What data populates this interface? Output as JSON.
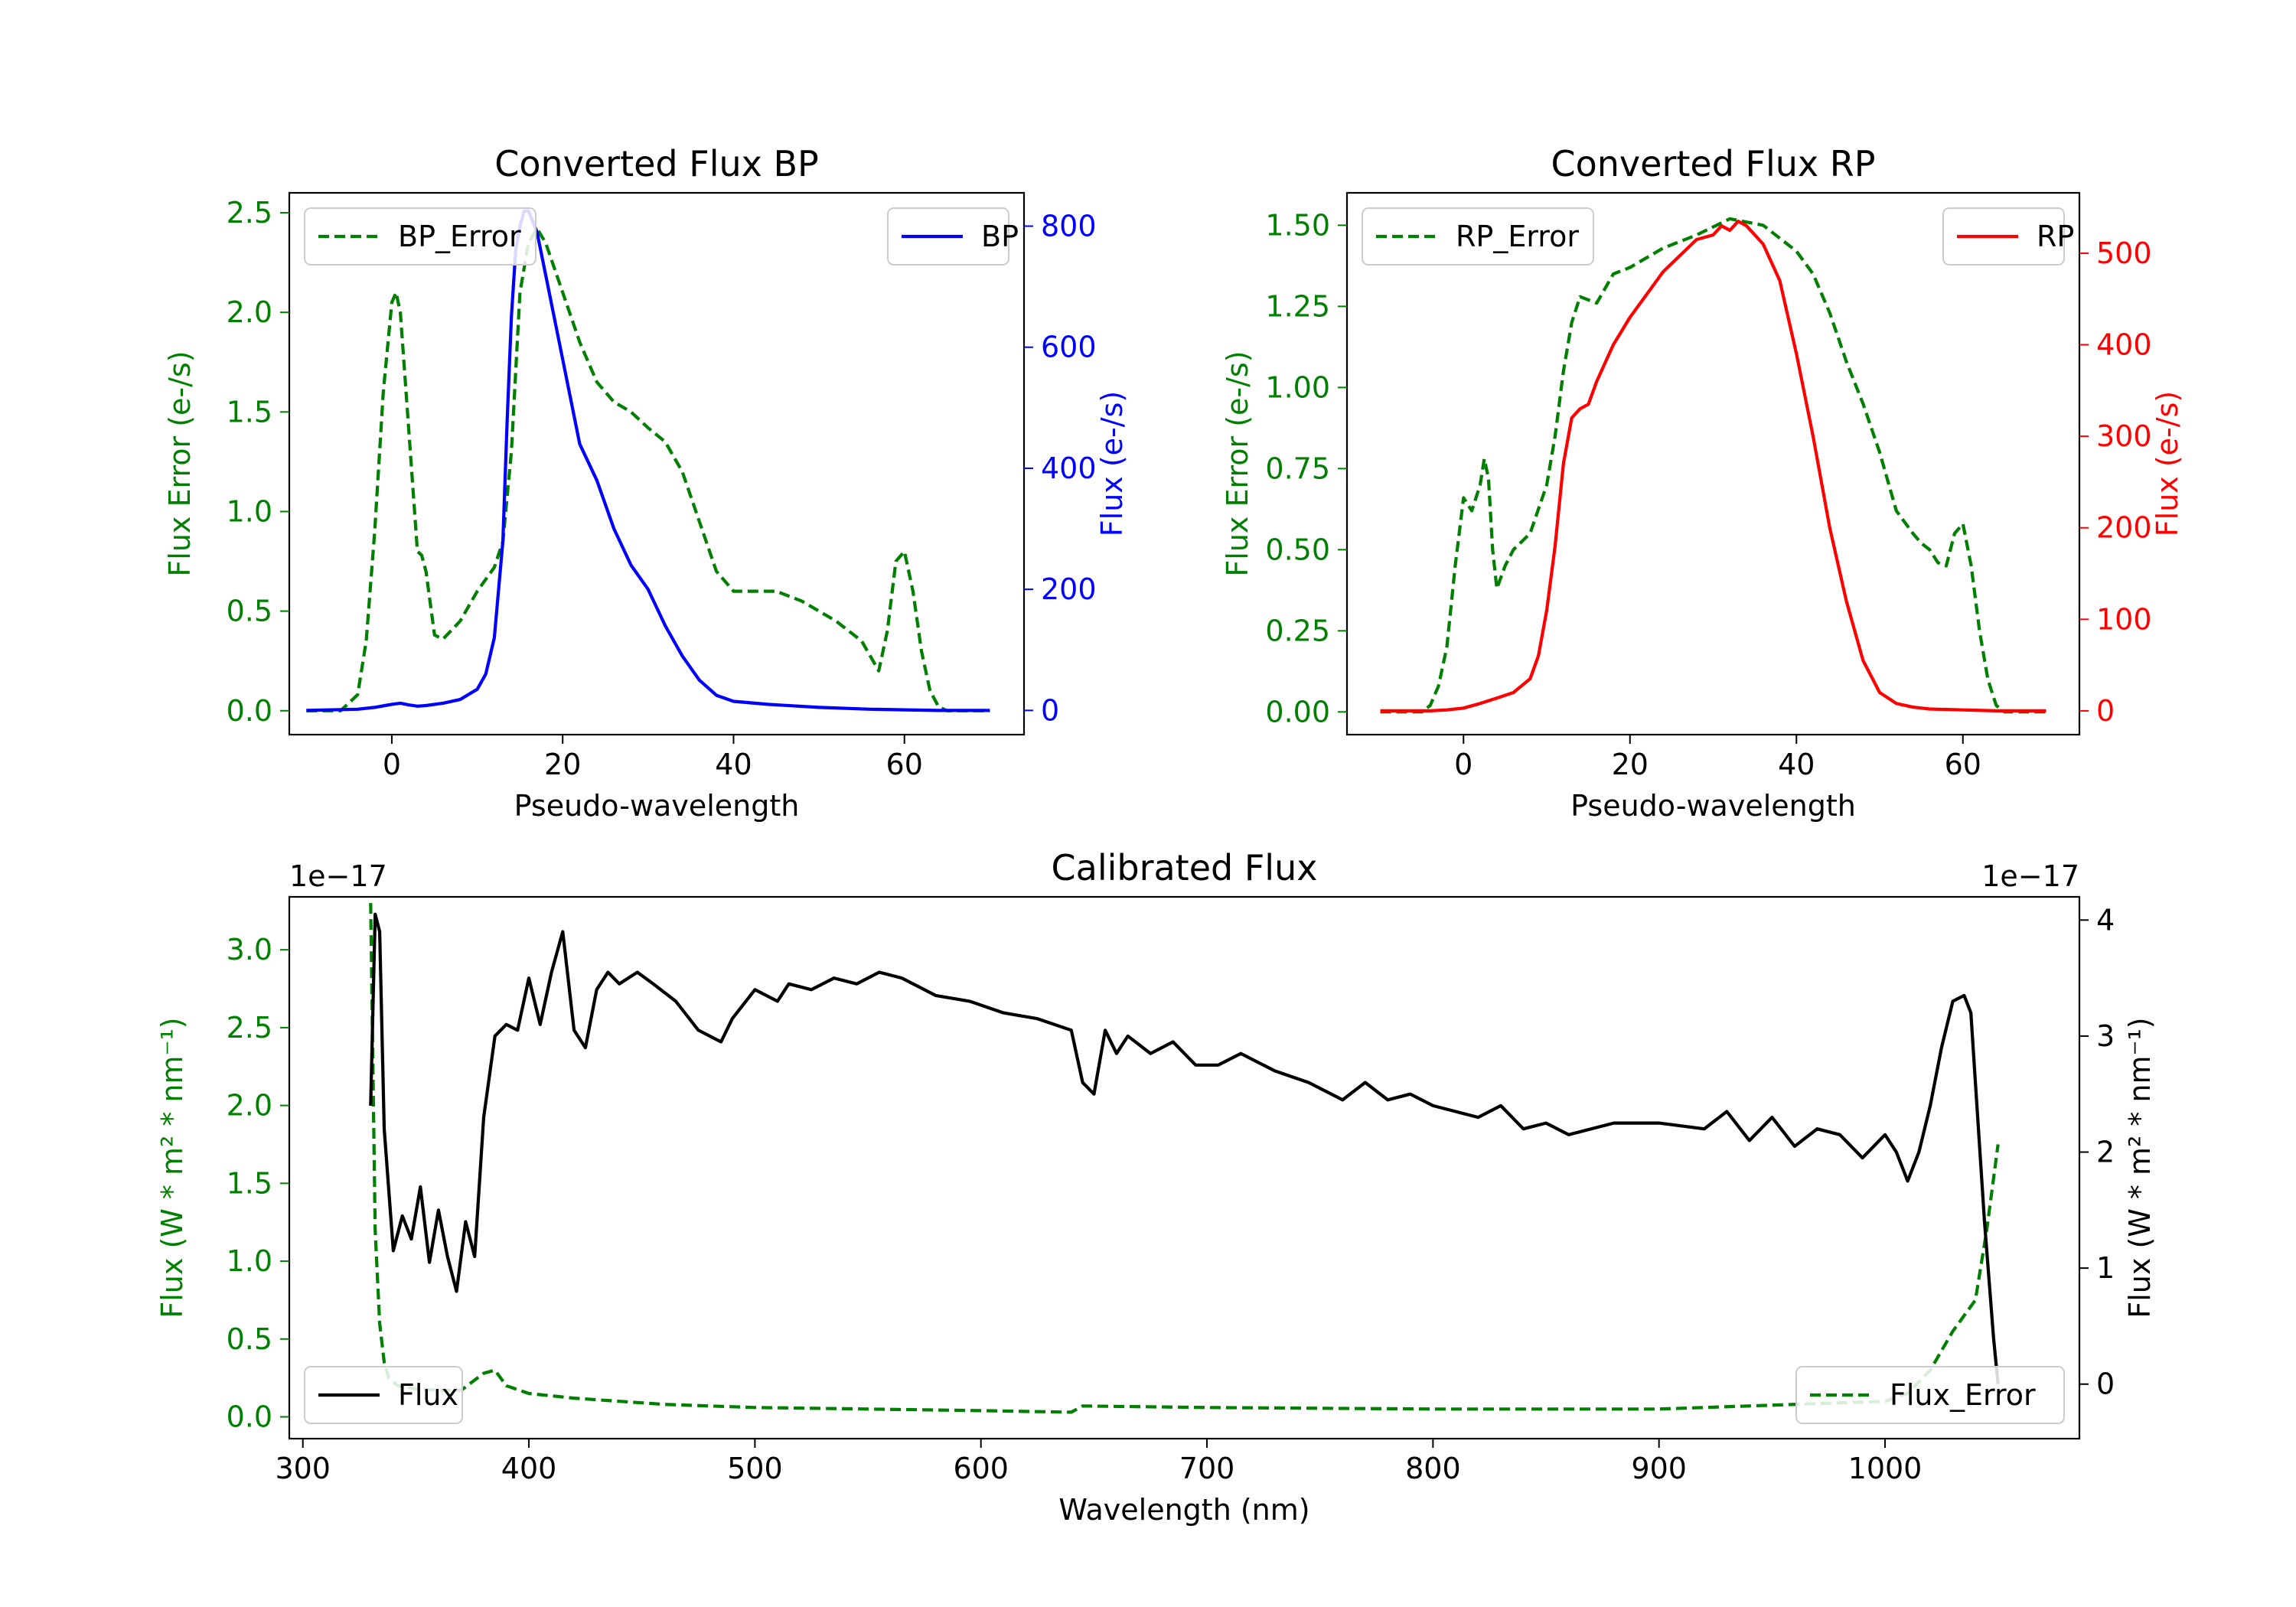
{
  "chart_data": [
    {
      "type": "line",
      "title": "Converted Flux BP",
      "xlabel": "Pseudo-wavelength",
      "ylabel_left": "Flux Error (e-/s)",
      "ylabel_right": "Flux (e-/s)",
      "xlim": [
        -12,
        74
      ],
      "ylim_left": [
        -0.12,
        2.6
      ],
      "ylim_right": [
        -40,
        855
      ],
      "xticks": [
        0,
        20,
        40,
        60
      ],
      "yticks_left": [
        "0.0",
        "0.5",
        "1.0",
        "1.5",
        "2.0",
        "2.5"
      ],
      "yticks_right": [
        "0",
        "200",
        "400",
        "600",
        "800"
      ],
      "legend_left": "BP_Error",
      "legend_right": "BP",
      "colors": {
        "error": "#007f00",
        "flux": "#0000ff",
        "left_axis": "#008000",
        "right_axis": "#0000ff"
      },
      "series": [
        {
          "name": "BP_Error",
          "axis": "left",
          "style": "dashed",
          "x": [
            -10,
            -6,
            -4,
            -3,
            -2,
            -1,
            0,
            0.5,
            1,
            2,
            3,
            3.5,
            4,
            5,
            6,
            8,
            10,
            12,
            13,
            14,
            15,
            16,
            17,
            18,
            20,
            22,
            24,
            26,
            28,
            30,
            32,
            34,
            36,
            38,
            40,
            42,
            45,
            48,
            52,
            55,
            57,
            58,
            59,
            60,
            61,
            62,
            63,
            64,
            65,
            66,
            70
          ],
          "y": [
            0,
            0,
            0.08,
            0.35,
            0.9,
            1.6,
            2.05,
            2.1,
            2.0,
            1.4,
            0.8,
            0.78,
            0.7,
            0.38,
            0.36,
            0.45,
            0.6,
            0.72,
            0.85,
            1.3,
            2.1,
            2.35,
            2.42,
            2.35,
            2.1,
            1.85,
            1.65,
            1.55,
            1.5,
            1.42,
            1.35,
            1.2,
            0.95,
            0.7,
            0.6,
            0.6,
            0.6,
            0.55,
            0.45,
            0.35,
            0.2,
            0.4,
            0.75,
            0.8,
            0.6,
            0.3,
            0.1,
            0.02,
            0,
            0,
            0
          ]
        },
        {
          "name": "BP",
          "axis": "right",
          "style": "solid",
          "x": [
            -10,
            -4,
            -2,
            0,
            1,
            2,
            3,
            4,
            6,
            8,
            10,
            11,
            12,
            13,
            13.5,
            14,
            14.5,
            15,
            15.5,
            16,
            17,
            18,
            20,
            22,
            24,
            26,
            28,
            30,
            32,
            34,
            36,
            38,
            40,
            44,
            50,
            56,
            60,
            64,
            70
          ],
          "y": [
            0,
            2,
            5,
            10,
            12,
            9,
            7,
            8,
            12,
            18,
            35,
            60,
            120,
            280,
            480,
            650,
            760,
            800,
            825,
            825,
            790,
            720,
            580,
            440,
            380,
            300,
            240,
            200,
            140,
            90,
            50,
            25,
            15,
            10,
            5,
            2,
            1,
            0,
            0
          ]
        }
      ]
    },
    {
      "type": "line",
      "title": "Converted Flux RP",
      "xlabel": "Pseudo-wavelength",
      "ylabel_left": "Flux Error (e-/s)",
      "ylabel_right": "Flux (e-/s)",
      "xlim": [
        -14,
        74
      ],
      "ylim_left": [
        -0.07,
        1.6
      ],
      "ylim_right": [
        -26,
        566
      ],
      "xticks": [
        0,
        20,
        40,
        60
      ],
      "yticks_left": [
        "0.00",
        "0.25",
        "0.50",
        "0.75",
        "1.00",
        "1.25",
        "1.50"
      ],
      "yticks_right": [
        "0",
        "100",
        "200",
        "300",
        "400",
        "500"
      ],
      "legend_left": "RP_Error",
      "legend_right": "RP",
      "colors": {
        "error": "#007f00",
        "flux": "#ff0000",
        "left_axis": "#008000",
        "right_axis": "#ff0000"
      },
      "series": [
        {
          "name": "RP_Error",
          "axis": "left",
          "style": "dashed",
          "x": [
            -10,
            -5,
            -4,
            -3,
            -2,
            -1,
            0,
            1,
            2,
            2.5,
            3,
            3.5,
            4,
            5,
            6,
            8,
            10,
            11,
            12,
            13,
            14,
            15,
            16,
            18,
            20,
            24,
            28,
            32,
            36,
            40,
            42,
            44,
            46,
            48,
            50,
            52,
            54,
            55,
            56,
            57,
            58,
            59,
            60,
            61,
            62,
            63,
            64,
            65,
            70
          ],
          "y": [
            0,
            0,
            0.02,
            0.08,
            0.2,
            0.45,
            0.66,
            0.62,
            0.7,
            0.78,
            0.72,
            0.5,
            0.38,
            0.45,
            0.5,
            0.55,
            0.7,
            0.85,
            1.05,
            1.2,
            1.28,
            1.27,
            1.26,
            1.35,
            1.37,
            1.43,
            1.47,
            1.52,
            1.5,
            1.42,
            1.35,
            1.23,
            1.08,
            0.95,
            0.8,
            0.62,
            0.55,
            0.52,
            0.5,
            0.46,
            0.45,
            0.55,
            0.58,
            0.45,
            0.25,
            0.1,
            0.02,
            0,
            0
          ]
        },
        {
          "name": "RP",
          "axis": "right",
          "style": "solid",
          "x": [
            -10,
            -4,
            -2,
            0,
            2,
            4,
            6,
            8,
            9,
            10,
            11,
            12,
            13,
            14,
            15,
            16,
            18,
            20,
            24,
            28,
            30,
            31,
            32,
            33,
            34,
            36,
            38,
            40,
            42,
            44,
            46,
            48,
            50,
            52,
            54,
            56,
            60,
            64,
            70
          ],
          "y": [
            0,
            0,
            1,
            3,
            8,
            14,
            20,
            35,
            60,
            110,
            180,
            270,
            320,
            330,
            335,
            360,
            400,
            430,
            480,
            515,
            520,
            530,
            525,
            535,
            530,
            510,
            470,
            390,
            300,
            200,
            120,
            55,
            20,
            8,
            4,
            2,
            1,
            0,
            0
          ]
        }
      ]
    },
    {
      "type": "line",
      "title": "Calibrated Flux",
      "xlabel": "Wavelength (nm)",
      "ylabel_left": "Flux (W * m² * nm⁻¹)",
      "ylabel_right": "Flux (W * m² * nm⁻¹)",
      "offset_left": "1e−17",
      "offset_right": "1e−17",
      "xlim": [
        294,
        1086
      ],
      "ylim_left": [
        -0.14,
        3.34
      ],
      "ylim_right": [
        -0.47,
        4.2
      ],
      "xticks": [
        300,
        400,
        500,
        600,
        700,
        800,
        900,
        1000
      ],
      "yticks_left": [
        "0.0",
        "0.5",
        "1.0",
        "1.5",
        "2.0",
        "2.5",
        "3.0"
      ],
      "yticks_right": [
        "0",
        "1",
        "2",
        "3",
        "4"
      ],
      "legend_left": "Flux",
      "legend_right": "Flux_Error",
      "colors": {
        "error": "#007f00",
        "flux": "#000000",
        "left_axis": "#008000",
        "right_axis": "#000000"
      },
      "series": [
        {
          "name": "Flux_Error",
          "axis": "left",
          "style": "dashed",
          "x": [
            330,
            332,
            334,
            336,
            338,
            342,
            350,
            360,
            370,
            380,
            385,
            390,
            400,
            420,
            440,
            460,
            480,
            500,
            550,
            600,
            640,
            645,
            700,
            800,
            900,
            1000,
            1010,
            1020,
            1030,
            1040,
            1045,
            1050
          ],
          "y": [
            3.3,
            1.2,
            0.6,
            0.35,
            0.25,
            0.2,
            0.18,
            0.17,
            0.17,
            0.28,
            0.3,
            0.2,
            0.15,
            0.12,
            0.1,
            0.08,
            0.07,
            0.06,
            0.05,
            0.04,
            0.03,
            0.07,
            0.06,
            0.05,
            0.05,
            0.1,
            0.15,
            0.3,
            0.55,
            0.75,
            1.2,
            1.75
          ]
        },
        {
          "name": "Flux",
          "axis": "right",
          "style": "solid",
          "x": [
            330,
            332,
            334,
            336,
            340,
            344,
            348,
            352,
            356,
            360,
            364,
            368,
            372,
            376,
            380,
            385,
            390,
            395,
            400,
            405,
            410,
            415,
            420,
            425,
            430,
            435,
            440,
            448,
            455,
            465,
            475,
            485,
            490,
            500,
            510,
            515,
            525,
            535,
            545,
            555,
            565,
            580,
            595,
            610,
            625,
            640,
            645,
            650,
            655,
            660,
            665,
            675,
            685,
            695,
            705,
            715,
            730,
            745,
            760,
            770,
            780,
            790,
            800,
            810,
            820,
            830,
            840,
            850,
            860,
            880,
            900,
            920,
            930,
            940,
            950,
            960,
            970,
            980,
            990,
            1000,
            1005,
            1010,
            1015,
            1020,
            1025,
            1030,
            1035,
            1038,
            1040,
            1044,
            1048,
            1050
          ],
          "y": [
            2.4,
            4.05,
            3.9,
            2.2,
            1.15,
            1.45,
            1.25,
            1.7,
            1.05,
            1.5,
            1.1,
            0.8,
            1.4,
            1.1,
            2.3,
            3.0,
            3.1,
            3.05,
            3.5,
            3.1,
            3.55,
            3.9,
            3.05,
            2.9,
            3.4,
            3.55,
            3.45,
            3.55,
            3.45,
            3.3,
            3.05,
            2.95,
            3.15,
            3.4,
            3.3,
            3.45,
            3.4,
            3.5,
            3.45,
            3.55,
            3.5,
            3.35,
            3.3,
            3.2,
            3.15,
            3.05,
            2.6,
            2.5,
            3.05,
            2.85,
            3.0,
            2.85,
            2.95,
            2.75,
            2.75,
            2.85,
            2.7,
            2.6,
            2.45,
            2.6,
            2.45,
            2.5,
            2.4,
            2.35,
            2.3,
            2.4,
            2.2,
            2.25,
            2.15,
            2.25,
            2.25,
            2.2,
            2.35,
            2.1,
            2.3,
            2.05,
            2.2,
            2.15,
            1.95,
            2.15,
            2.0,
            1.75,
            2.0,
            2.4,
            2.9,
            3.3,
            3.35,
            3.2,
            2.6,
            1.4,
            0.4,
            0.0
          ]
        }
      ]
    }
  ]
}
